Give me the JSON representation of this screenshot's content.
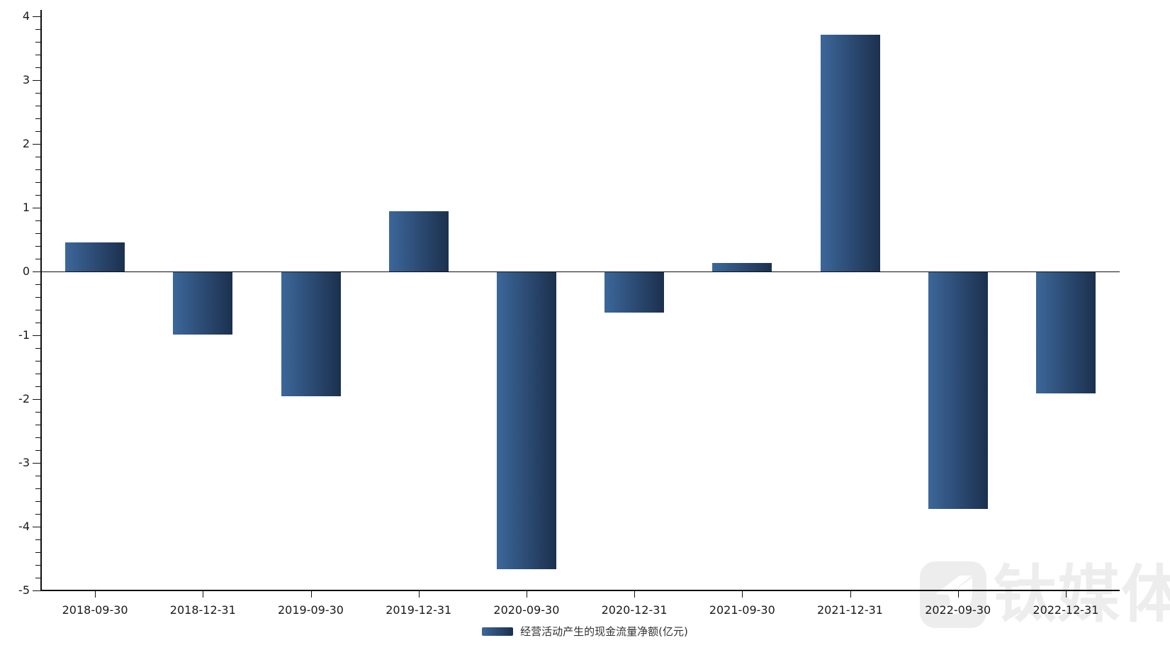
{
  "chart_data": {
    "type": "bar",
    "title": "",
    "xlabel": "",
    "ylabel": "",
    "categories": [
      "2018-09-30",
      "2018-12-31",
      "2019-09-30",
      "2019-12-31",
      "2020-09-30",
      "2020-12-31",
      "2021-09-30",
      "2021-12-31",
      "2022-09-30",
      "2022-12-31"
    ],
    "values": [
      0.46,
      -0.98,
      -1.94,
      0.94,
      -4.66,
      -0.63,
      0.13,
      3.71,
      -3.71,
      -1.9
    ],
    "series_name": "经营活动产生的现金流量净额(亿元)",
    "ylim": [
      -5,
      4
    ],
    "y_major_ticks": [
      4,
      3,
      2,
      1,
      0,
      -1,
      -2,
      -3,
      -4,
      -5
    ],
    "y_minor_step": 0.2,
    "grid": false,
    "legend_position": "bottom",
    "bar_color_left": "#3c679a",
    "bar_color_right": "#1c304e",
    "axis_color": "#111111",
    "label_color": "#1a1a1a"
  },
  "legend": {
    "label": "经营活动产生的现金流量净额(亿元)"
  },
  "watermark": {
    "text": "钛媒体"
  }
}
